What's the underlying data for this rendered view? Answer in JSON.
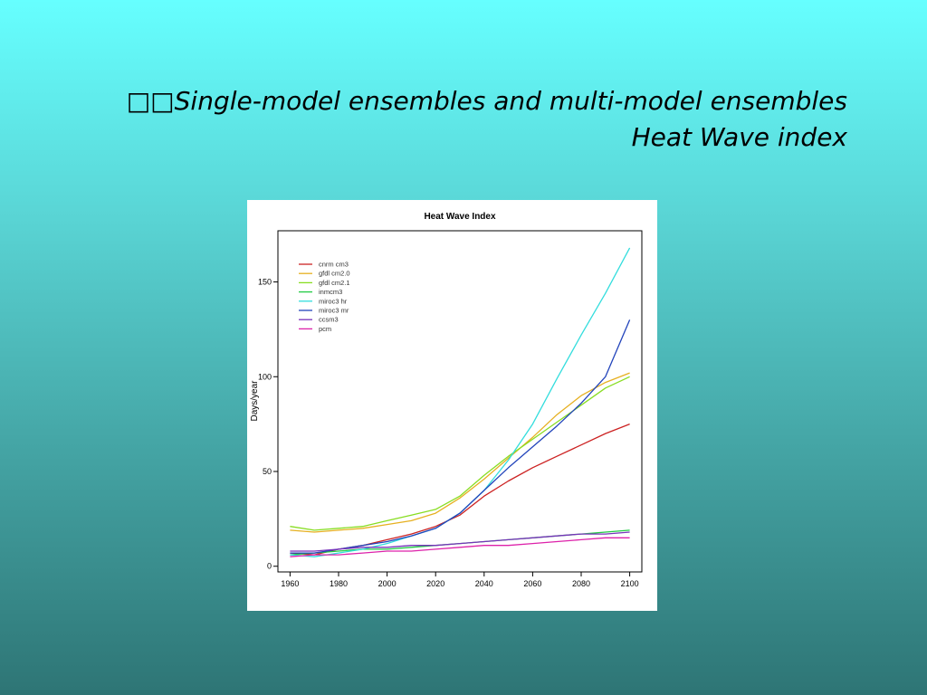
{
  "slide": {
    "title_line1": "Single-model ensembles and multi-model ensembles",
    "title_line2": "Heat Wave index",
    "bullet": "□□"
  },
  "chart_data": {
    "type": "line",
    "title": "Heat Wave Index",
    "xlabel": "",
    "ylabel": "Days/year",
    "xlim": [
      1955,
      2105
    ],
    "ylim": [
      -3,
      177
    ],
    "xticks": [
      1960,
      1980,
      2000,
      2020,
      2040,
      2060,
      2080,
      2100
    ],
    "yticks": [
      0,
      50,
      100,
      150
    ],
    "grid": false,
    "legend_position": "top-left",
    "series": [
      {
        "name": "cnrm cm3",
        "color": "#cc2222",
        "points": [
          [
            1960,
            7
          ],
          [
            1970,
            6
          ],
          [
            1980,
            9
          ],
          [
            1990,
            11
          ],
          [
            2000,
            14
          ],
          [
            2010,
            17
          ],
          [
            2020,
            21
          ],
          [
            2030,
            27
          ],
          [
            2040,
            37
          ],
          [
            2050,
            45
          ],
          [
            2060,
            52
          ],
          [
            2070,
            58
          ],
          [
            2080,
            64
          ],
          [
            2090,
            70
          ],
          [
            2100,
            75
          ]
        ]
      },
      {
        "name": "gfdl cm2.0",
        "color": "#e6b020",
        "points": [
          [
            1960,
            19
          ],
          [
            1970,
            18
          ],
          [
            1980,
            19
          ],
          [
            1990,
            20
          ],
          [
            2000,
            22
          ],
          [
            2010,
            24
          ],
          [
            2020,
            28
          ],
          [
            2030,
            36
          ],
          [
            2040,
            46
          ],
          [
            2050,
            57
          ],
          [
            2060,
            68
          ],
          [
            2070,
            80
          ],
          [
            2080,
            90
          ],
          [
            2090,
            97
          ],
          [
            2100,
            102
          ]
        ]
      },
      {
        "name": "gfdl cm2.1",
        "color": "#88dd22",
        "points": [
          [
            1960,
            21
          ],
          [
            1970,
            19
          ],
          [
            1980,
            20
          ],
          [
            1990,
            21
          ],
          [
            2000,
            24
          ],
          [
            2010,
            27
          ],
          [
            2020,
            30
          ],
          [
            2030,
            37
          ],
          [
            2040,
            48
          ],
          [
            2050,
            58
          ],
          [
            2060,
            67
          ],
          [
            2070,
            76
          ],
          [
            2080,
            85
          ],
          [
            2090,
            94
          ],
          [
            2100,
            100
          ]
        ]
      },
      {
        "name": "inmcm3",
        "color": "#22cc44",
        "points": [
          [
            1960,
            6
          ],
          [
            1970,
            7
          ],
          [
            1980,
            8
          ],
          [
            1990,
            9
          ],
          [
            2000,
            9
          ],
          [
            2010,
            10
          ],
          [
            2020,
            11
          ],
          [
            2030,
            12
          ],
          [
            2040,
            13
          ],
          [
            2050,
            14
          ],
          [
            2060,
            15
          ],
          [
            2070,
            16
          ],
          [
            2080,
            17
          ],
          [
            2090,
            18
          ],
          [
            2100,
            19
          ]
        ]
      },
      {
        "name": "miroc3 hr",
        "color": "#33dddd",
        "points": [
          [
            1960,
            6
          ],
          [
            1970,
            5
          ],
          [
            1980,
            7
          ],
          [
            1990,
            9
          ],
          [
            2000,
            12
          ],
          [
            2010,
            16
          ],
          [
            2020,
            20
          ],
          [
            2030,
            28
          ],
          [
            2040,
            40
          ],
          [
            2050,
            56
          ],
          [
            2060,
            75
          ],
          [
            2070,
            99
          ],
          [
            2080,
            122
          ],
          [
            2090,
            144
          ],
          [
            2100,
            168
          ]
        ]
      },
      {
        "name": "miroc3 mr",
        "color": "#2244bb",
        "points": [
          [
            1960,
            7
          ],
          [
            1970,
            7
          ],
          [
            1980,
            9
          ],
          [
            1990,
            11
          ],
          [
            2000,
            13
          ],
          [
            2010,
            16
          ],
          [
            2020,
            20
          ],
          [
            2030,
            28
          ],
          [
            2040,
            40
          ],
          [
            2050,
            52
          ],
          [
            2060,
            63
          ],
          [
            2070,
            74
          ],
          [
            2080,
            86
          ],
          [
            2090,
            100
          ],
          [
            2100,
            130
          ]
        ]
      },
      {
        "name": "ccsm3",
        "color": "#7733bb",
        "points": [
          [
            1960,
            8
          ],
          [
            1970,
            8
          ],
          [
            1980,
            9
          ],
          [
            1990,
            10
          ],
          [
            2000,
            10
          ],
          [
            2010,
            11
          ],
          [
            2020,
            11
          ],
          [
            2030,
            12
          ],
          [
            2040,
            13
          ],
          [
            2050,
            14
          ],
          [
            2060,
            15
          ],
          [
            2070,
            16
          ],
          [
            2080,
            17
          ],
          [
            2090,
            17
          ],
          [
            2100,
            18
          ]
        ]
      },
      {
        "name": "pcm",
        "color": "#dd22aa",
        "points": [
          [
            1960,
            5
          ],
          [
            1970,
            6
          ],
          [
            1980,
            6
          ],
          [
            1990,
            7
          ],
          [
            2000,
            8
          ],
          [
            2010,
            8
          ],
          [
            2020,
            9
          ],
          [
            2030,
            10
          ],
          [
            2040,
            11
          ],
          [
            2050,
            11
          ],
          [
            2060,
            12
          ],
          [
            2070,
            13
          ],
          [
            2080,
            14
          ],
          [
            2090,
            15
          ],
          [
            2100,
            15
          ]
        ]
      }
    ]
  }
}
